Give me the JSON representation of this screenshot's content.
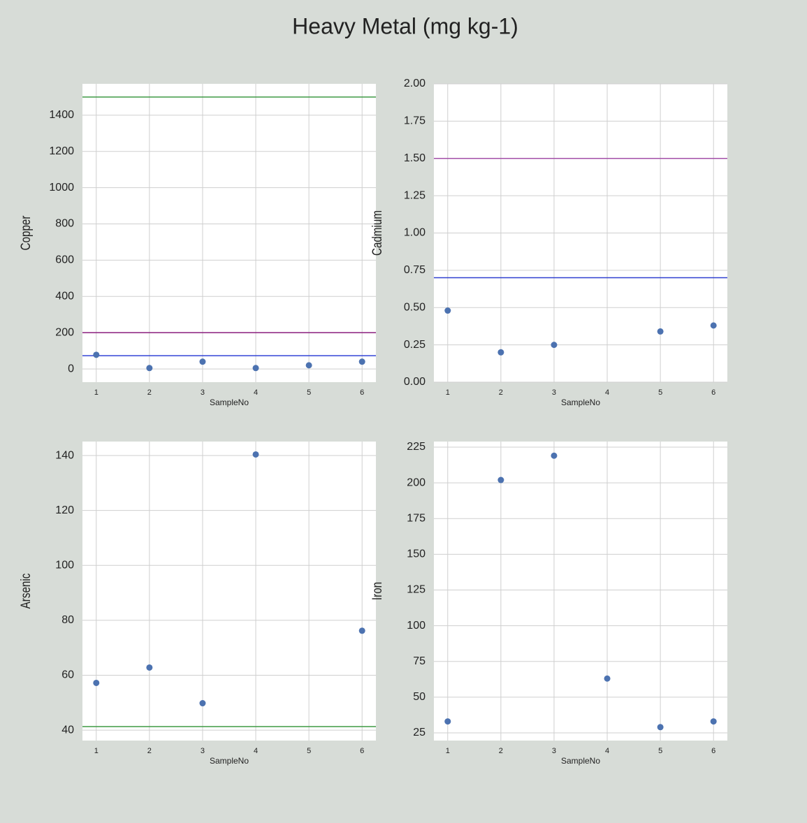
{
  "title": "Heavy Metal (mg kg-1)",
  "chart_data": [
    {
      "type": "scatter",
      "x_label": "SampleNo",
      "y_label": "Copper",
      "x": [
        1,
        2,
        3,
        4,
        5,
        6
      ],
      "values": [
        78,
        5,
        40,
        5,
        20,
        40
      ],
      "color": "#4c72b0",
      "xlim": [
        0.74,
        6.26
      ],
      "xticks": [
        1,
        2,
        3,
        4,
        5,
        6
      ],
      "ylim": [
        -73,
        1573
      ],
      "yticks": [
        0,
        200,
        400,
        600,
        800,
        1000,
        1200,
        1400
      ],
      "grid": true,
      "hlines": [
        {
          "value": 1500,
          "color": "#3f9a44"
        },
        {
          "value": 200,
          "color": "#8a1f7d"
        },
        {
          "value": 73,
          "color": "#3344d6"
        }
      ]
    },
    {
      "type": "scatter",
      "x_label": "SampleNo",
      "y_label": "Cadmium",
      "x": [
        1,
        2,
        3,
        4,
        5,
        6
      ],
      "values": [
        0.48,
        0.2,
        0.25,
        null,
        0.34,
        0.38
      ],
      "color": "#4c72b0",
      "xlim": [
        0.74,
        6.26
      ],
      "xticks": [
        1,
        2,
        3,
        4,
        5,
        6
      ],
      "ylim": [
        0,
        2.0
      ],
      "yticks": [
        {
          "value": 0,
          "label": "0.00"
        },
        {
          "value": 0.25,
          "label": "0.25"
        },
        {
          "value": 0.5,
          "label": "0.50"
        },
        {
          "value": 0.75,
          "label": "0.75"
        },
        {
          "value": 1,
          "label": "1.00"
        },
        {
          "value": 1.25,
          "label": "1.25"
        },
        {
          "value": 1.5,
          "label": "1.50"
        },
        {
          "value": 1.75,
          "label": "1.75"
        },
        {
          "value": 2,
          "label": "2.00"
        }
      ],
      "grid": true,
      "hlines": [
        {
          "value": 1.5,
          "color": "#a350a8"
        },
        {
          "value": 0.7,
          "color": "#2f3fd0"
        }
      ]
    },
    {
      "type": "scatter",
      "x_label": "SampleNo",
      "y_label": "Arsenic",
      "x": [
        1,
        2,
        3,
        4,
        5,
        6
      ],
      "values": [
        57.2,
        62.8,
        49.8,
        140.4,
        null,
        76.2
      ],
      "color": "#4c72b0",
      "xlim": [
        0.74,
        6.26
      ],
      "xticks": [
        1,
        2,
        3,
        4,
        5,
        6
      ],
      "ylim": [
        36.2,
        145.1
      ],
      "yticks": [
        40,
        60,
        80,
        100,
        120,
        140
      ],
      "grid": true,
      "hlines": [
        {
          "value": 41.3,
          "color": "#3f9a44"
        }
      ]
    },
    {
      "type": "scatter",
      "x_label": "SampleNo",
      "y_label": "Iron",
      "x": [
        1,
        2,
        3,
        4,
        5,
        6
      ],
      "values": [
        33,
        202,
        219,
        63,
        29,
        33
      ],
      "color": "#4c72b0",
      "xlim": [
        0.74,
        6.26
      ],
      "xticks": [
        1,
        2,
        3,
        4,
        5,
        6
      ],
      "ylim": [
        19.6,
        228.9
      ],
      "yticks": [
        25,
        50,
        75,
        100,
        125,
        150,
        175,
        200,
        225
      ],
      "grid": true,
      "hlines": []
    }
  ]
}
